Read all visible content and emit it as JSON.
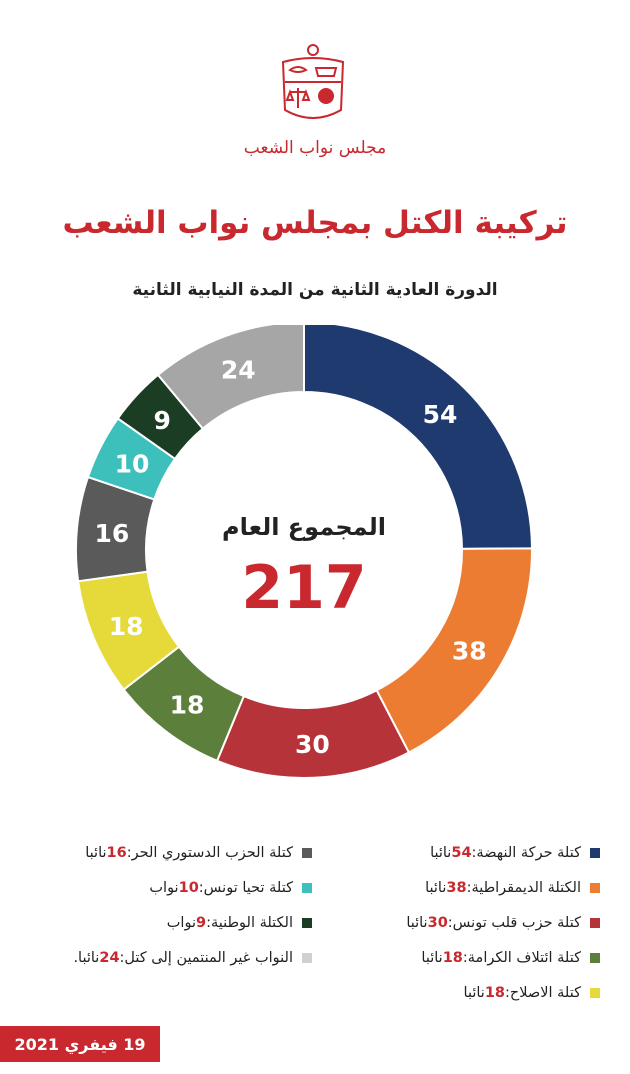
{
  "header": {
    "logo_text": "مجلس نواب الشعب"
  },
  "title": "تركيبة الكتل بمجلس نواب الشعب",
  "subtitle": "الدورة العادية الثانية من المدة النيابية الثانية",
  "total": {
    "label": "المجموع العام",
    "value": "217"
  },
  "chart_data": {
    "type": "pie",
    "title": "تركيبة الكتل بمجلس نواب الشعب",
    "total": 217,
    "slices": [
      {
        "name": "كتلة حركة النهضة",
        "value": 54,
        "color": "#1e3a6e"
      },
      {
        "name": "الكتلة الديمقراطية",
        "value": 38,
        "color": "#ec7c31"
      },
      {
        "name": "كتلة حزب قلب تونس",
        "value": 30,
        "color": "#b7333a"
      },
      {
        "name": "كتلة ائتلاف الكرامة",
        "value": 18,
        "color": "#5c7f3b"
      },
      {
        "name": "كتلة الاصلاح",
        "value": 18,
        "color": "#e6d93a"
      },
      {
        "name": "كتلة الحزب الدستوري الحر",
        "value": 16,
        "color": "#5a5a5a"
      },
      {
        "name": "كتلة تحيا تونس",
        "value": 10,
        "color": "#3dbfbc"
      },
      {
        "name": "الكتلة الوطنية",
        "value": 9,
        "color": "#1b3d23"
      },
      {
        "name": "النواب غير المنتمين إلى كتل",
        "value": 24,
        "color": "#a6a6a6"
      }
    ]
  },
  "legend": {
    "right": [
      {
        "label": "كتلة حركة النهضة: ",
        "num": "54",
        "unit": " نائبا",
        "color": "#1e3a6e"
      },
      {
        "label": "الكتلة الديمقراطية: ",
        "num": "38",
        "unit": " نائبا",
        "color": "#ec7c31"
      },
      {
        "label": "كتلة حزب قلب تونس: ",
        "num": "30",
        "unit": " نائبا",
        "color": "#b7333a"
      },
      {
        "label": "كتلة ائتلاف الكرامة: ",
        "num": "18",
        "unit": " نائبا",
        "color": "#5c7f3b"
      },
      {
        "label": "كتلة الاصلاح: ",
        "num": "18",
        "unit": " نائبا",
        "color": "#e6d93a"
      }
    ],
    "left": [
      {
        "label": "كتلة الحزب الدستوري الحر: ",
        "num": "16",
        "unit": " نائبا",
        "color": "#5a5a5a"
      },
      {
        "label": "كتلة تحيا تونس: ",
        "num": "10",
        "unit": " نواب",
        "color": "#3dbfbc"
      },
      {
        "label": "الكتلة الوطنية: ",
        "num": "9",
        "unit": " نواب",
        "color": "#1b3d23"
      },
      {
        "label": "النواب غير المنتمين إلى كتل: ",
        "num": "24",
        "unit": "نائبا.",
        "color": "#d0d0d0"
      }
    ]
  },
  "date": "19 فيفري 2021",
  "colors": {
    "accent": "#c8282e"
  }
}
